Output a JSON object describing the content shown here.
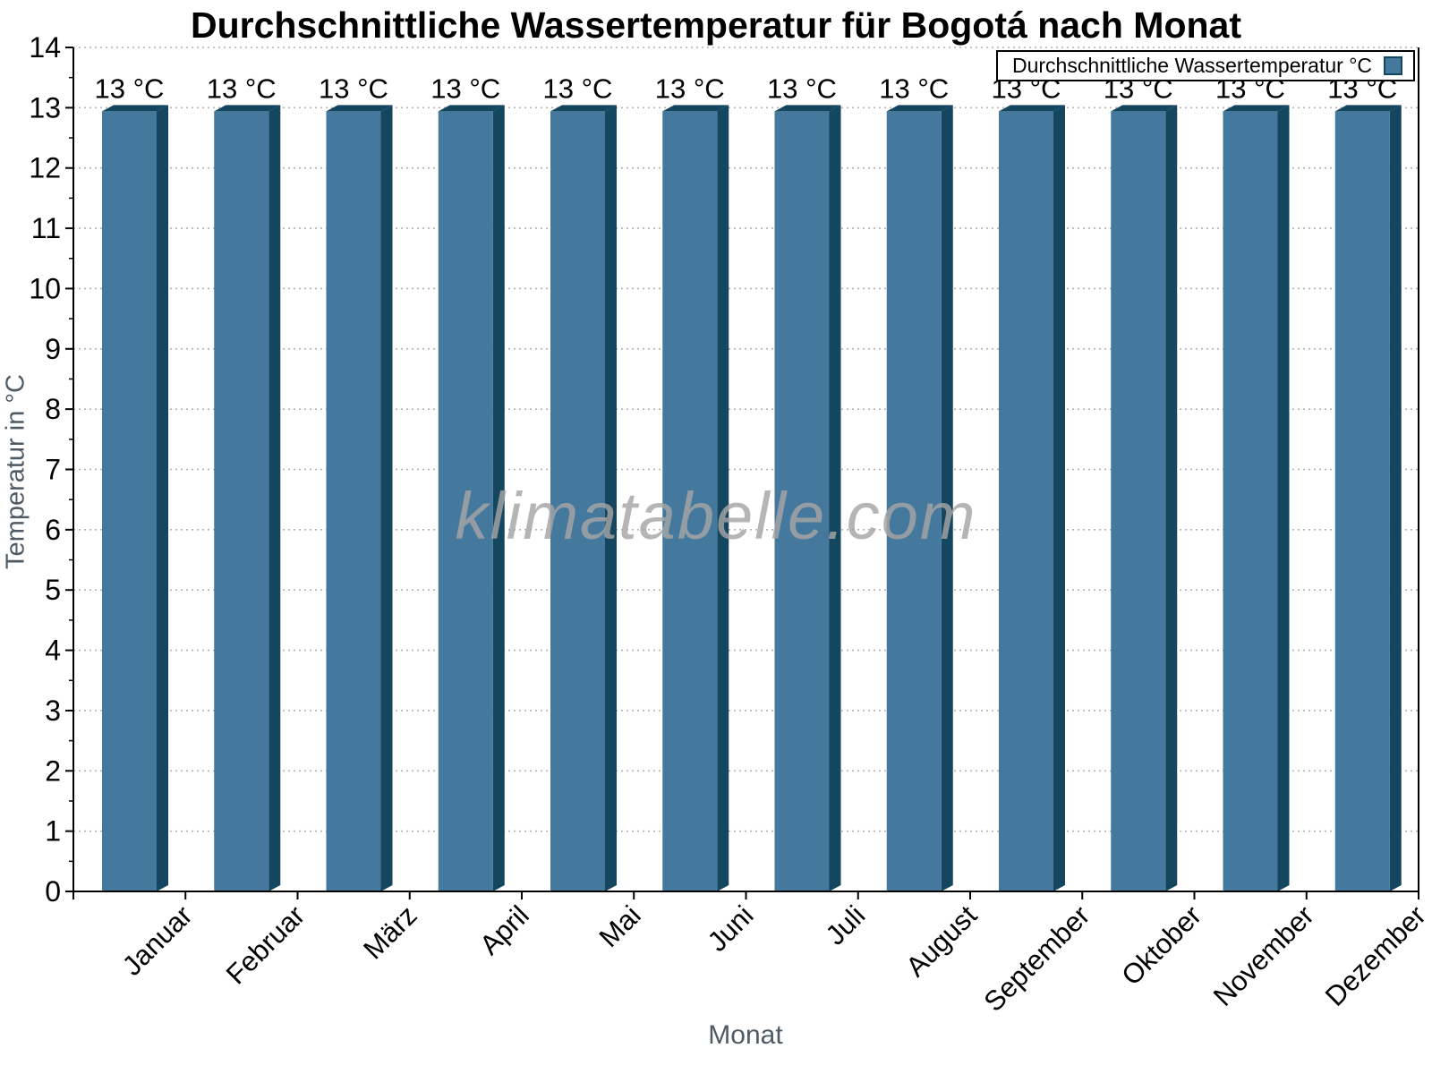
{
  "title": "Durchschnittliche Wassertemperatur für Bogotá nach Monat",
  "watermark": "klimatabelle.com",
  "legend": {
    "label": "Durchschnittliche Wassertemperatur °C"
  },
  "chart_data": {
    "type": "bar",
    "title": "Durchschnittliche Wassertemperatur für Bogotá nach Monat",
    "xlabel": "Monat",
    "ylabel": "Temperatur in °C",
    "categories": [
      "Januar",
      "Februar",
      "März",
      "April",
      "Mai",
      "Juni",
      "Juli",
      "August",
      "September",
      "Oktober",
      "November",
      "Dezember"
    ],
    "series": [
      {
        "name": "Durchschnittliche Wassertemperatur °C",
        "values": [
          13,
          13,
          13,
          13,
          13,
          13,
          13,
          13,
          13,
          13,
          13,
          13
        ]
      }
    ],
    "bar_labels": [
      "13 °C",
      "13 °C",
      "13 °C",
      "13 °C",
      "13 °C",
      "13 °C",
      "13 °C",
      "13 °C",
      "13 °C",
      "13 °C",
      "13 °C",
      "13 °C"
    ],
    "ylim": [
      0,
      14
    ],
    "yticks": [
      0,
      1,
      2,
      3,
      4,
      5,
      6,
      7,
      8,
      9,
      10,
      11,
      12,
      13,
      14
    ],
    "minor_ytick_interval": 0.5,
    "grid": "horizontal-dotted",
    "legend_position": "top-right",
    "bar_style": "3d-bevel",
    "colors": {
      "bar_front": "#44789D",
      "bar_edge_dark": "#15465F",
      "axis": "#000000",
      "tick_label": "#000000",
      "axis_title": "#4E5A64",
      "gridline": "#B3B3B3",
      "watermark_gray": "#A5A5A5",
      "legend_border": "#000000",
      "background": "#FFFFFF"
    }
  }
}
